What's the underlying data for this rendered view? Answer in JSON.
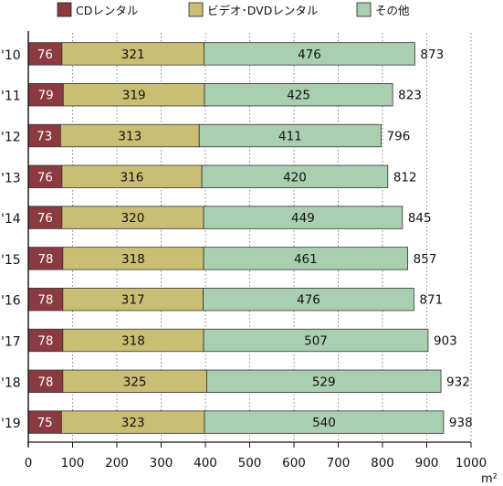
{
  "chart_data": {
    "type": "bar",
    "orientation": "horizontal",
    "stacked": true,
    "categories": [
      "'10",
      "'11",
      "'12",
      "'13",
      "'14",
      "'15",
      "'16",
      "'17",
      "'18",
      "'19"
    ],
    "series": [
      {
        "name": "CDレンタル",
        "color": "#8b3a3f",
        "values": [
          76,
          79,
          73,
          76,
          76,
          78,
          78,
          78,
          78,
          75
        ]
      },
      {
        "name": "ビデオ･DVDレンタル",
        "color": "#c9be74",
        "values": [
          321,
          319,
          313,
          316,
          320,
          318,
          317,
          318,
          325,
          323
        ]
      },
      {
        "name": "その他",
        "color": "#a9cfb0",
        "values": [
          476,
          425,
          411,
          420,
          449,
          461,
          476,
          507,
          529,
          540
        ]
      }
    ],
    "totals": [
      873,
      823,
      796,
      812,
      845,
      857,
      871,
      903,
      932,
      938
    ],
    "xlim": [
      0,
      1000
    ],
    "xticks": [
      0,
      100,
      200,
      300,
      400,
      500,
      600,
      700,
      800,
      900,
      1000
    ],
    "unit": "m²",
    "grid": "vertical-dotted",
    "legend_position": "top"
  }
}
